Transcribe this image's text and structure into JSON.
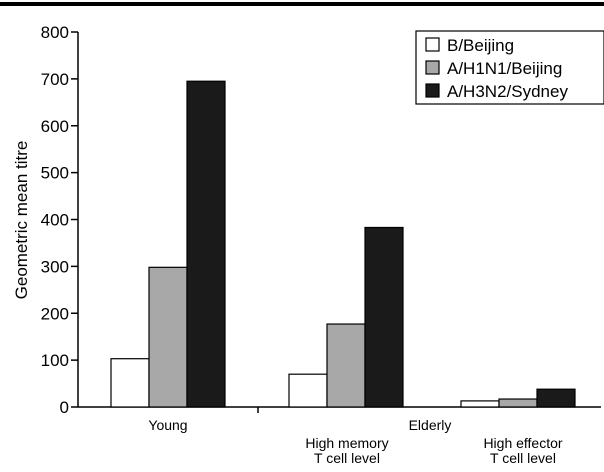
{
  "chart_data": {
    "type": "bar",
    "ylabel": "Geometric mean titre",
    "ylim": [
      0,
      800
    ],
    "yticks": [
      0,
      100,
      200,
      300,
      400,
      500,
      600,
      700,
      800
    ],
    "grid": false,
    "legend_position": "top-right",
    "groups": [
      {
        "label": "Young"
      },
      {
        "label": "Elderly"
      }
    ],
    "categories": [
      "Young",
      "High memory\nT cell level",
      "High effector\nT cell level"
    ],
    "category_lines": [
      [
        "Young"
      ],
      [
        "High memory",
        "T cell level"
      ],
      [
        "High effector",
        "T cell level"
      ]
    ],
    "series": [
      {
        "name": "B/Beijing",
        "color": "#ffffff",
        "values": [
          103,
          70,
          13
        ]
      },
      {
        "name": "A/H1N1/Beijing",
        "color": "#a8a8a8",
        "values": [
          298,
          177,
          17
        ]
      },
      {
        "name": "A/H3N2/Sydney",
        "color": "#1a1a1a",
        "values": [
          695,
          383,
          38
        ]
      }
    ]
  }
}
